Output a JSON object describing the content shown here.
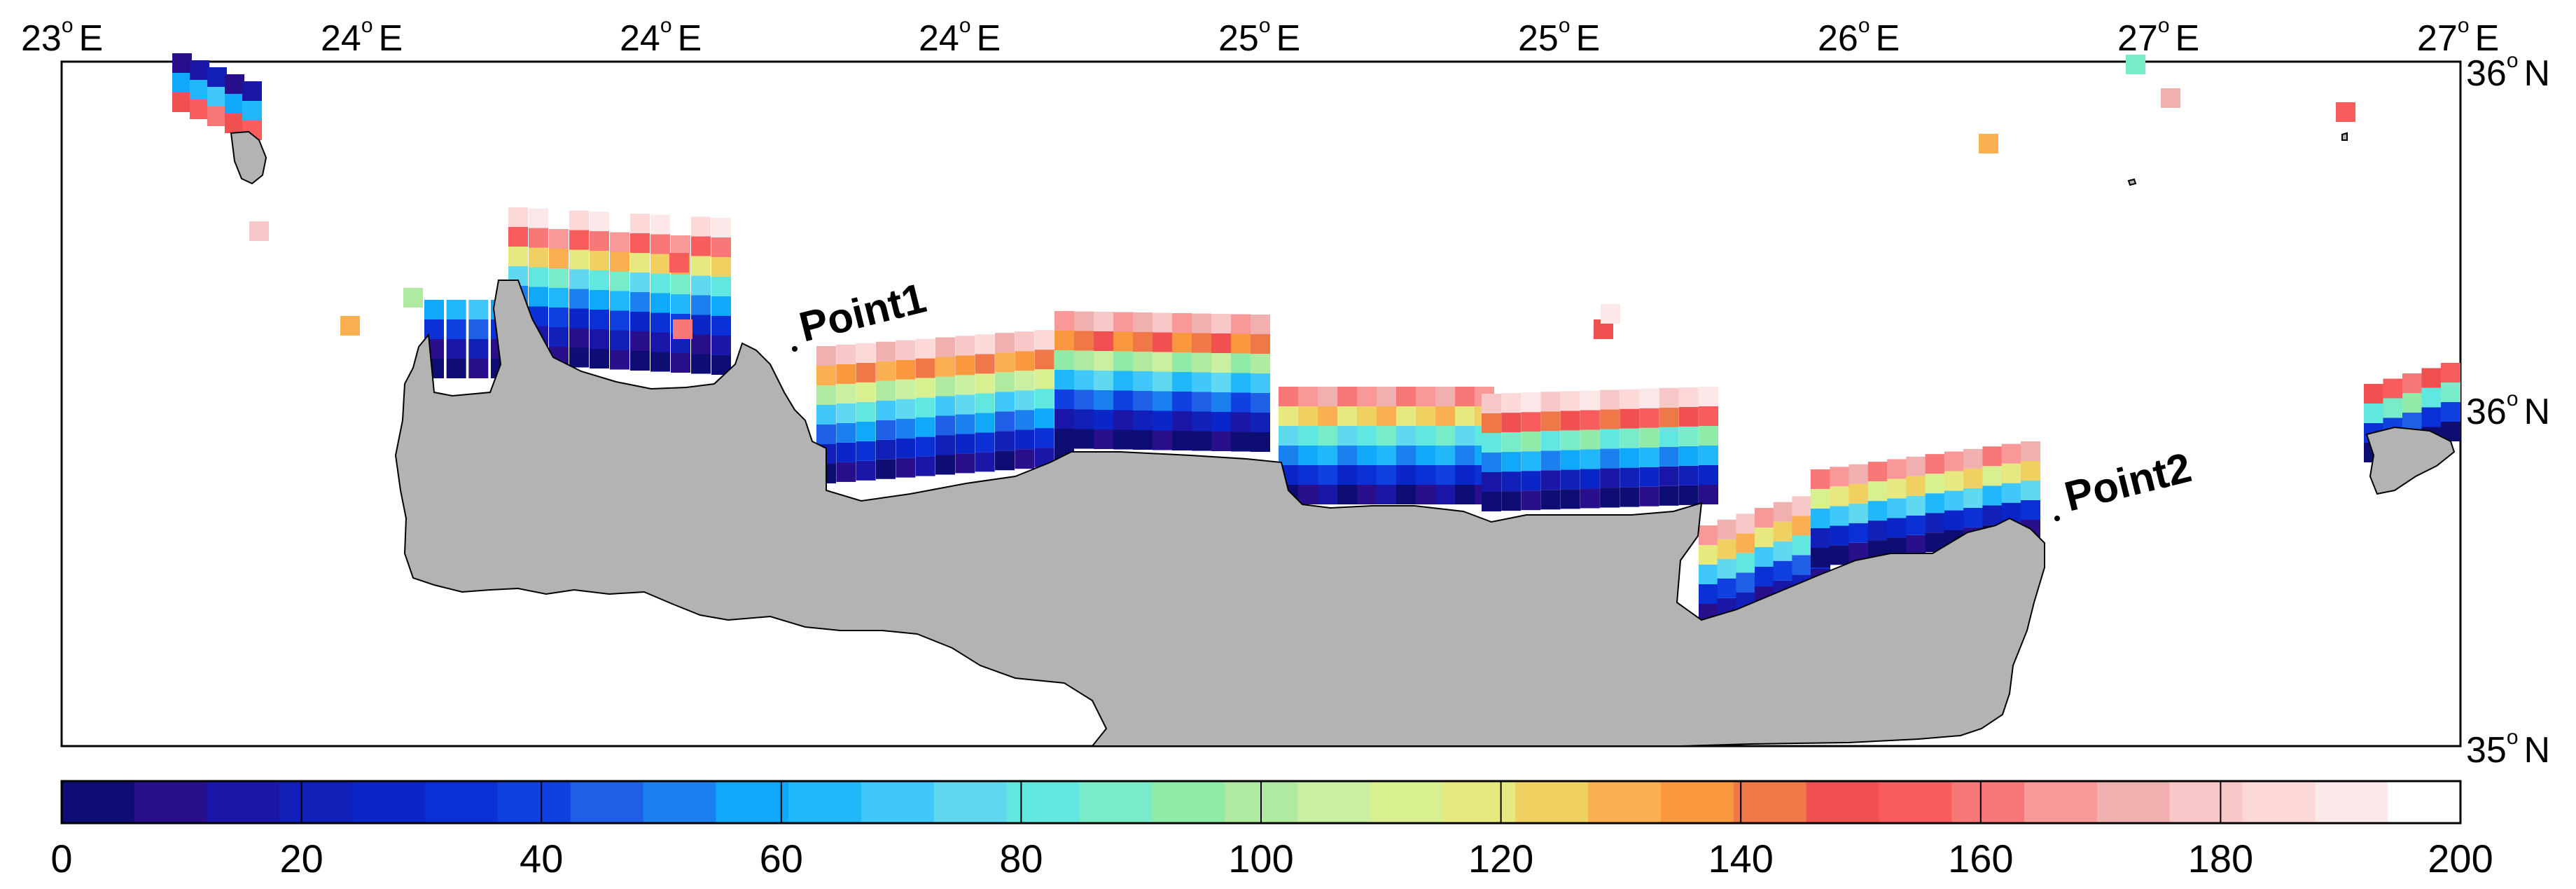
{
  "map": {
    "longitude_labels": [
      "23",
      "24",
      "24",
      "24",
      "25",
      "25",
      "26",
      "27",
      "27"
    ],
    "longitude_hemisphere": "E",
    "latitude_labels": [
      "36",
      "36",
      "35"
    ],
    "latitude_hemisphere": "N",
    "degree_symbol": "o",
    "points": [
      {
        "label": "Point1"
      },
      {
        "label": "Point2"
      }
    ],
    "land_color": "#b3b3b3",
    "sea_color": "#ffffff",
    "coastline_color": "#000000"
  },
  "colorbar": {
    "min": 0,
    "max": 200,
    "tick_labels": [
      "0",
      "20",
      "40",
      "60",
      "80",
      "100",
      "120",
      "140",
      "160",
      "180",
      "200"
    ],
    "colors": [
      "#0d0d73",
      "#2a0f8c",
      "#1a17a8",
      "#1020b8",
      "#0a25c8",
      "#0a30d6",
      "#1040e0",
      "#2060e8",
      "#1a80f0",
      "#10a8f8",
      "#20b8fa",
      "#40c8fa",
      "#60d8f0",
      "#60e8e0",
      "#78ecc8",
      "#90eaa8",
      "#b0eaa0",
      "#c8f0a0",
      "#d8f090",
      "#e8e880",
      "#f0d060",
      "#fab050",
      "#fa9840",
      "#f07848",
      "#f05050",
      "#f85c5c",
      "#f87878",
      "#f89898",
      "#f0b0b0",
      "#f8c8c8",
      "#fcd8d8",
      "#fce8e8",
      "#ffffff"
    ]
  }
}
